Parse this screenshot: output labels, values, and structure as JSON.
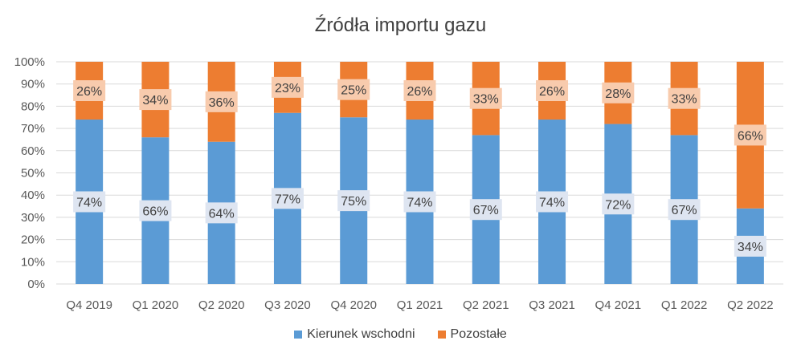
{
  "chart_data": {
    "type": "bar",
    "stacked": true,
    "percent": true,
    "title": "Źródła importu gazu",
    "categories": [
      "Q4 2019",
      "Q1 2020",
      "Q2 2020",
      "Q3 2020",
      "Q4 2020",
      "Q1 2021",
      "Q2 2021",
      "Q3 2021",
      "Q4 2021",
      "Q1 2022",
      "Q2 2022"
    ],
    "series": [
      {
        "name": "Kierunek wschodni",
        "color": "#5B9BD5",
        "values": [
          74,
          66,
          64,
          77,
          75,
          74,
          67,
          74,
          72,
          67,
          34
        ],
        "labels": [
          "74%",
          "66%",
          "64%",
          "77%",
          "75%",
          "74%",
          "67%",
          "74%",
          "72%",
          "67%",
          "34%"
        ]
      },
      {
        "name": "Pozostałe",
        "color": "#ED7D31",
        "values": [
          26,
          34,
          36,
          23,
          25,
          26,
          33,
          26,
          28,
          33,
          66
        ],
        "labels": [
          "26%",
          "34%",
          "36%",
          "23%",
          "25%",
          "26%",
          "33%",
          "26%",
          "28%",
          "33%",
          "66%"
        ]
      }
    ],
    "ylim": [
      0,
      100
    ],
    "yticks": [
      "0%",
      "10%",
      "20%",
      "30%",
      "40%",
      "50%",
      "60%",
      "70%",
      "80%",
      "90%",
      "100%"
    ],
    "grid": true,
    "legend_position": "bottom"
  }
}
